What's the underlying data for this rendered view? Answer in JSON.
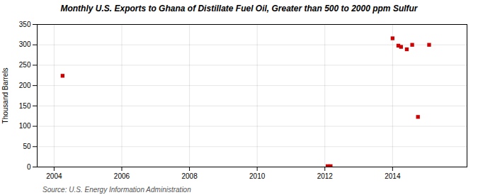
{
  "chart_data": {
    "type": "scatter",
    "title": "Monthly U.S. Exports to Ghana of Distillate Fuel Oil, Greater than 500 to 2000 ppm Sulfur",
    "ylabel": "Thousand Barrels",
    "annotation": "Source: U.S. Energy Information Administration",
    "x": [
      2004.25,
      2012.08,
      2012.17,
      2014.0,
      2014.17,
      2014.25,
      2014.42,
      2014.58,
      2014.75,
      2015.08
    ],
    "values": [
      224,
      2,
      2,
      316,
      298,
      295,
      289,
      300,
      123,
      300
    ],
    "color": "#cc0000",
    "marker": "square",
    "xlim": [
      2003.5,
      2016.2
    ],
    "ylim": [
      0,
      350
    ],
    "xticks": [
      2004,
      2006,
      2008,
      2010,
      2012,
      2014
    ],
    "yticks": [
      0,
      50,
      100,
      150,
      200,
      250,
      300,
      350
    ],
    "grid": true
  }
}
